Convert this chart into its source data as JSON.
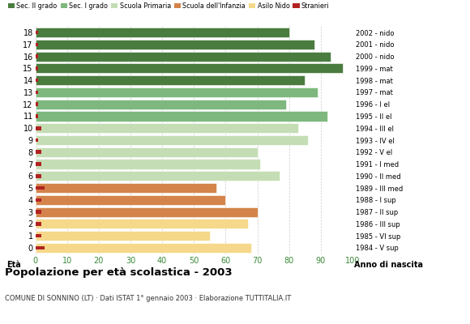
{
  "ages": [
    18,
    17,
    16,
    15,
    14,
    13,
    12,
    11,
    10,
    9,
    8,
    7,
    6,
    5,
    4,
    3,
    2,
    1,
    0
  ],
  "years": [
    "1984 - V sup",
    "1985 - VI sup",
    "1986 - III sup",
    "1987 - II sup",
    "1988 - I sup",
    "1989 - III med",
    "1990 - II med",
    "1991 - I med",
    "1992 - V el",
    "1993 - IV el",
    "1994 - III el",
    "1995 - II el",
    "1996 - I el",
    "1997 - mat",
    "1998 - mat",
    "1999 - mat",
    "2000 - nido",
    "2001 - nido",
    "2002 - nido"
  ],
  "values": [
    80,
    88,
    93,
    97,
    85,
    89,
    79,
    92,
    83,
    86,
    70,
    71,
    77,
    57,
    60,
    70,
    67,
    55,
    68
  ],
  "stranieri": [
    1,
    1,
    1,
    1,
    1,
    1,
    1,
    1,
    2,
    1,
    2,
    2,
    2,
    3,
    2,
    2,
    2,
    2,
    3
  ],
  "bar_colors": [
    "#4a7c3f",
    "#4a7c3f",
    "#4a7c3f",
    "#4a7c3f",
    "#4a7c3f",
    "#7eb87e",
    "#7eb87e",
    "#7eb87e",
    "#c5ddb5",
    "#c5ddb5",
    "#c5ddb5",
    "#c5ddb5",
    "#c5ddb5",
    "#d4844a",
    "#d4844a",
    "#d4844a",
    "#f5d88a",
    "#f5d88a",
    "#f5d88a"
  ],
  "legend_labels": [
    "Sec. II grado",
    "Sec. I grado",
    "Scuola Primaria",
    "Scuola dell'Infanzia",
    "Asilo Nido",
    "Stranieri"
  ],
  "legend_colors": [
    "#4a7c3f",
    "#7eb87e",
    "#c5ddb5",
    "#d4844a",
    "#f5d88a",
    "#b22222"
  ],
  "title": "Popolazione per età scolastica - 2003",
  "subtitle": "COMUNE DI SONNINO (LT) · Dati ISTAT 1° gennaio 2003 · Elaborazione TUTTITALIA.IT",
  "eta_label": "Età",
  "anno_label": "Anno di nascita",
  "xlim": [
    0,
    100
  ],
  "xticks": [
    0,
    10,
    20,
    30,
    40,
    50,
    60,
    70,
    80,
    90,
    100
  ],
  "stranieri_color": "#b22222",
  "bg_color": "#ffffff",
  "grid_color": "#cccccc",
  "xaxis_color": "#3a8a3a",
  "bar_height": 0.82
}
